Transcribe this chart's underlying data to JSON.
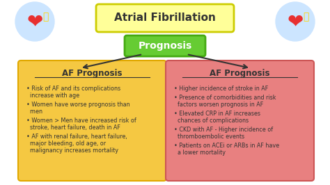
{
  "title": "Atrial Fibrillation",
  "title_box_color": "#FFFF99",
  "title_border_color": "#CCCC00",
  "subtitle": "Prognosis",
  "subtitle_box_color": "#66CC33",
  "subtitle_border_color": "#44AA11",
  "background_color": "#FFFFFF",
  "left_box_color": "#F5C842",
  "left_box_border": "#E0A800",
  "left_title": "AF Prognosis",
  "left_bullets": [
    "Risk of AF and its complications\nincrease with age",
    "Women have worse prognosis than\nmen",
    "Women > Men have increased risk of\nstroke, heart failure, death in AF",
    "AF with renal failure, heart failure,\nmajor bleeding, old age, or\nmalignancy increases mortality"
  ],
  "right_box_color": "#E88080",
  "right_box_border": "#CC5555",
  "right_title": "AF Prognosis",
  "right_bullets": [
    "Higher incidence of stroke in AF",
    "Presence of comorbidities and risk\nfactors worsen prognosis in AF",
    "Elevated CRP in AF increases\nchances of complications",
    "CKD with AF - Higher incidence of\nthromboembolic events",
    "Patients on ACEi or ARBs in AF have\na lower mortality"
  ],
  "text_color": "#333333",
  "arrow_color": "#333333"
}
